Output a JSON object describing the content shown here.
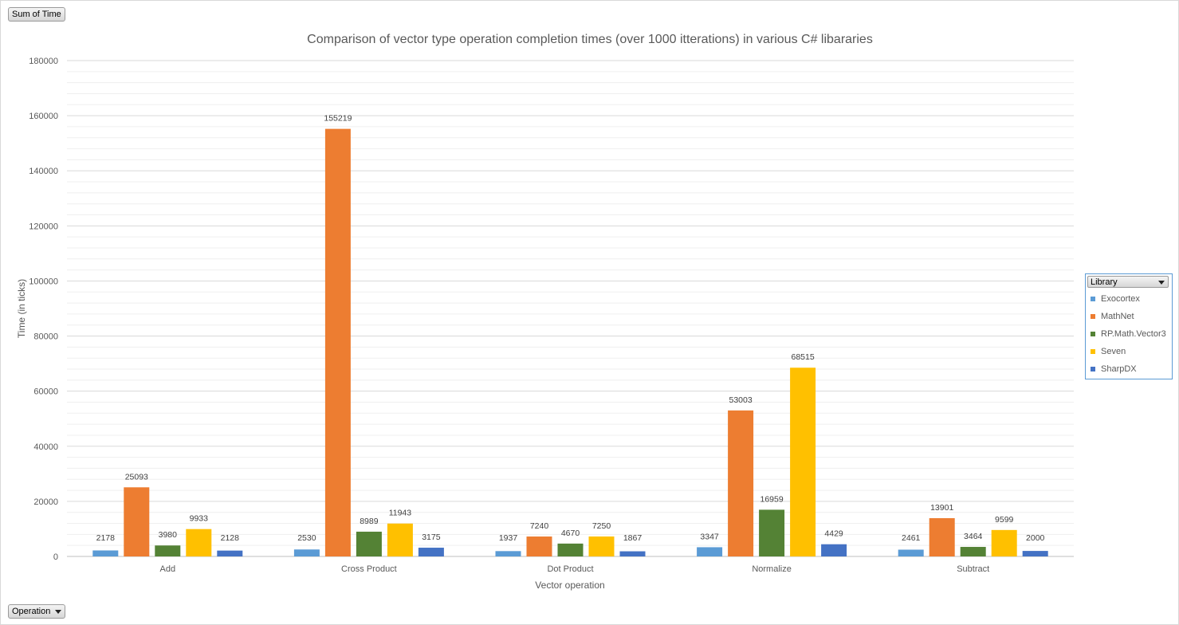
{
  "pivot": {
    "values_field": "Sum of Time",
    "axis_field": "Operation",
    "legend_field": "Library"
  },
  "chart_data": {
    "type": "bar",
    "title": "Comparison of vector type operation completion times (over 1000 itterations) in various C# libararies",
    "xlabel": "Vector operation",
    "ylabel": "Time (in ticks)",
    "ylim": [
      0,
      180000
    ],
    "yticks": [
      0,
      20000,
      40000,
      60000,
      80000,
      100000,
      120000,
      140000,
      160000,
      180000
    ],
    "grid": true,
    "legend_position": "right",
    "categories": [
      "Add",
      "Cross Product",
      "Dot Product",
      "Normalize",
      "Subtract"
    ],
    "series": [
      {
        "name": "Exocortex",
        "color": "#5b9bd5",
        "values": [
          2178,
          2530,
          1937,
          3347,
          2461
        ]
      },
      {
        "name": "MathNet",
        "color": "#ed7d31",
        "values": [
          25093,
          155219,
          7240,
          53003,
          13901
        ]
      },
      {
        "name": "RP.Math.Vector3",
        "color": "#548235",
        "values": [
          3980,
          8989,
          4670,
          16959,
          3464
        ]
      },
      {
        "name": "Seven",
        "color": "#ffc000",
        "values": [
          9933,
          11943,
          7250,
          68515,
          9599
        ]
      },
      {
        "name": "SharpDX",
        "color": "#4472c4",
        "values": [
          2128,
          3175,
          1867,
          4429,
          2000
        ]
      }
    ]
  }
}
